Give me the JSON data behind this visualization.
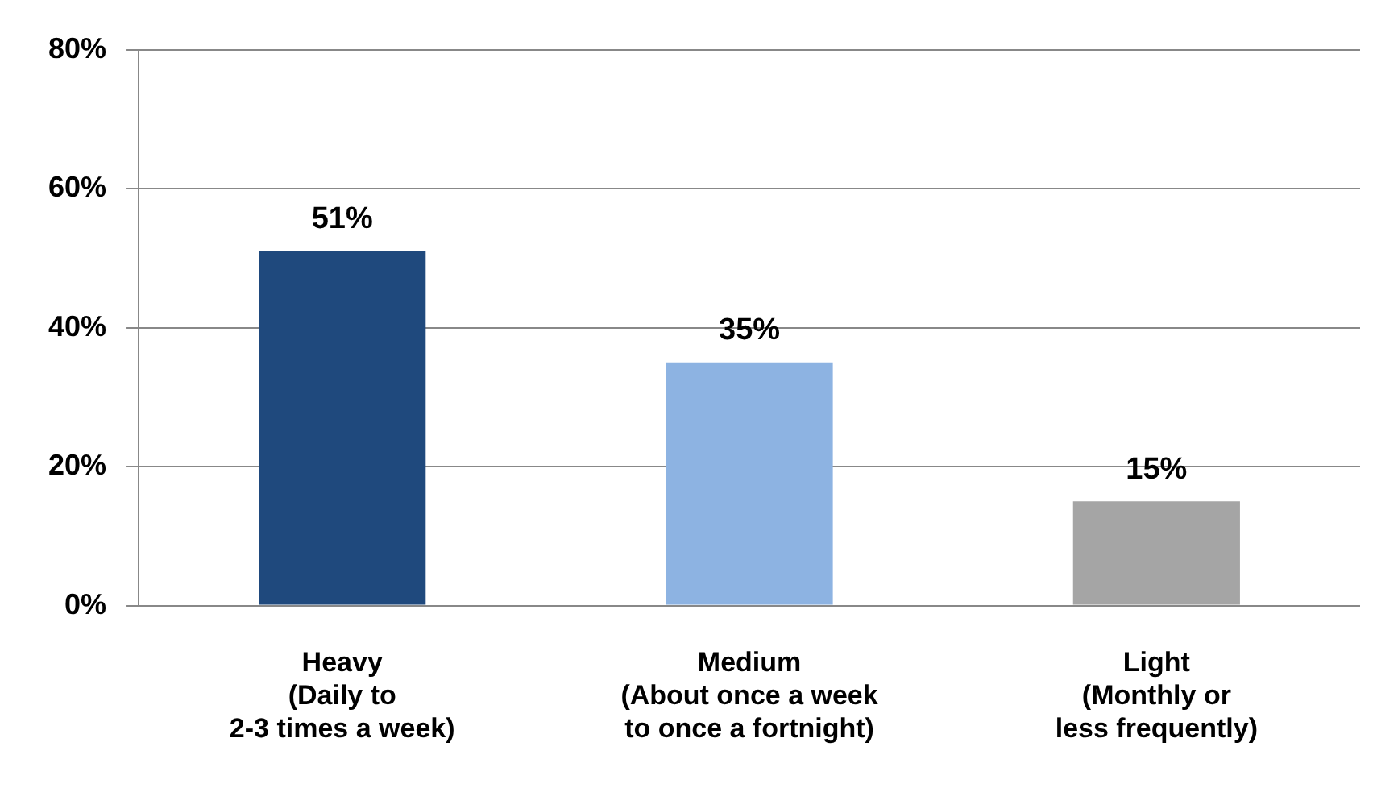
{
  "chart_data": {
    "type": "bar",
    "categories": [
      "Heavy\n(Daily to\n2-3 times a week)",
      "Medium\n(About once a week\nto once a fortnight)",
      "Light\n(Monthly or\nless frequently)"
    ],
    "values": [
      51,
      35,
      15
    ],
    "colors": [
      "#1f497d",
      "#8db3e2",
      "#a5a5a5"
    ],
    "value_labels": [
      "51%",
      "35%",
      "15%"
    ],
    "ylim": [
      0,
      80
    ],
    "yticks": [
      {
        "value": 0,
        "label": "0%"
      },
      {
        "value": 20,
        "label": "20%"
      },
      {
        "value": 40,
        "label": "40%"
      },
      {
        "value": 60,
        "label": "60%"
      },
      {
        "value": 80,
        "label": "80%"
      }
    ],
    "grid": "y",
    "legend": false
  }
}
